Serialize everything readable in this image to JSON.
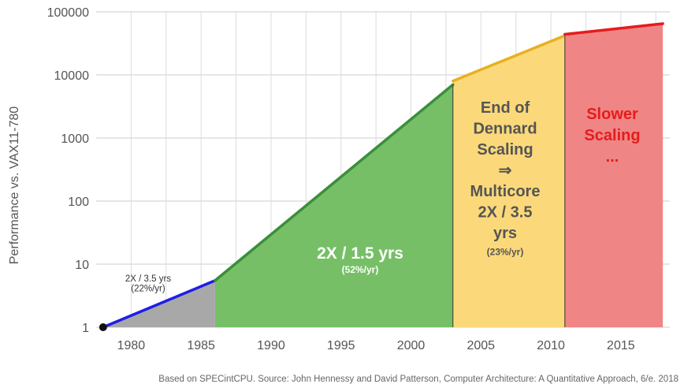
{
  "chart_data": {
    "type": "area",
    "ylabel": "Performance vs. VAX11-780",
    "yscale": "log",
    "ylim": [
      1,
      100000
    ],
    "xlim": [
      1977.5,
      2018.5
    ],
    "x_ticks": [
      "1980",
      "1985",
      "1990",
      "1995",
      "2000",
      "2005",
      "2010",
      "2015"
    ],
    "y_ticks": [
      "1",
      "10",
      "100",
      "1000",
      "10000",
      "100000"
    ],
    "grid": true,
    "start_point": {
      "x": 1978,
      "y": 1
    },
    "segments": [
      {
        "x_start": 1978,
        "x_end": 1986,
        "y_start": 1,
        "y_end": 5.5,
        "fill": "#a8a8a8",
        "line": "#1e1ee6",
        "label_lines": [
          "2X / 3.5 yrs",
          "(22%/yr)"
        ]
      },
      {
        "x_start": 1986,
        "x_end": 2003,
        "y_start": 5.5,
        "y_end": 7000,
        "fill": "#76bf66",
        "line": "#3a8f3a",
        "label_lines": [
          "2X / 1.5 yrs",
          "(52%/yr)"
        ]
      },
      {
        "x_start": 2003,
        "x_end": 2011,
        "y_start": 8000,
        "y_end": 42000,
        "fill": "#fbd97a",
        "line": "#e8b020",
        "label_lines": [
          "End of",
          "Dennard",
          "Scaling",
          "⇒",
          "Multicore",
          "2X / 3.5",
          "yrs",
          "(23%/yr)"
        ]
      },
      {
        "x_start": 2011,
        "x_end": 2018,
        "y_start": 44000,
        "y_end": 65000,
        "fill": "#f08585",
        "line": "#e51c1c",
        "label_lines": [
          "Slower",
          "Scaling",
          "..."
        ]
      }
    ],
    "source": "Based on SPECintCPU. Source: John Hennessy and David Patterson, Computer Architecture: A Quantitative Approach, 6/e. 2018"
  }
}
